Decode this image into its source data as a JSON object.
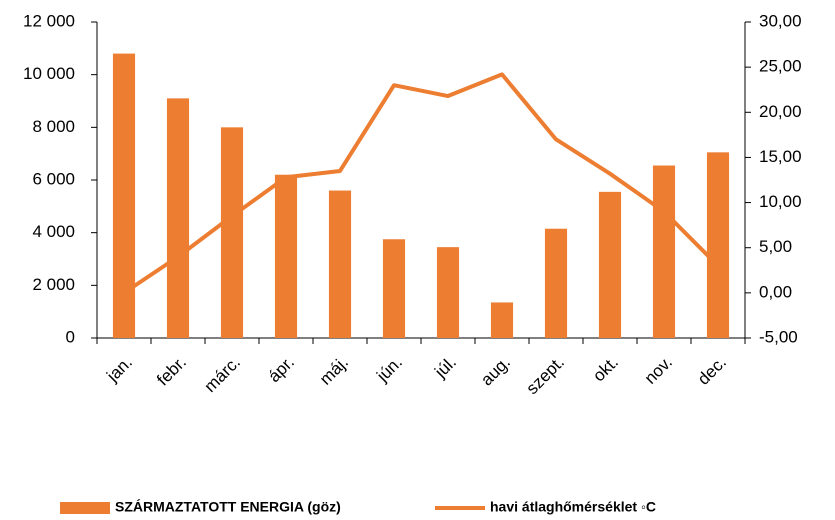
{
  "chart_data": {
    "type": "bar_line",
    "categories": [
      "jan.",
      "febr.",
      "márc.",
      "ápr.",
      "máj.",
      "jún.",
      "júl.",
      "aug.",
      "szept.",
      "okt.",
      "nov.",
      "dec."
    ],
    "series": [
      {
        "name": "SZÁRMAZTATOTT ENERGIA (göz)",
        "color": "#ed7d31",
        "type": "bar",
        "values": [
          10800,
          9100,
          8000,
          6200,
          5600,
          3750,
          3450,
          1350,
          4150,
          5550,
          6550,
          7050
        ]
      },
      {
        "name": "havi átlaghőmérséklet ◦C",
        "color": "#ed7d31",
        "type": "line",
        "axis": "y2",
        "values": [
          0,
          4,
          8.5,
          12.8,
          13.5,
          23,
          21.8,
          24.2,
          17,
          13.2,
          9,
          3
        ]
      }
    ],
    "ylim": [
      0,
      12000
    ],
    "yticks": [
      0,
      {
        "value": 2000,
        "label": "2 000"
      },
      {
        "value": 4000,
        "label": "4 000"
      },
      {
        "value": 6000,
        "label": "6 000"
      },
      {
        "value": 8000,
        "label": "8 000"
      },
      {
        "value": 10000,
        "label": "10 000"
      },
      {
        "value": 12000,
        "label": "12 000"
      }
    ],
    "y2lim": [
      -5,
      30
    ],
    "y2ticks": [
      {
        "value": -5,
        "label": "-5,00"
      },
      {
        "value": 0,
        "label": "0,00"
      },
      {
        "value": 5,
        "label": "5,00"
      },
      {
        "value": 10,
        "label": "10,00"
      },
      {
        "value": 15,
        "label": "15,00"
      },
      {
        "value": 20,
        "label": "20,00"
      },
      {
        "value": 25,
        "label": "25,00"
      },
      {
        "value": 30,
        "label": "30,00"
      }
    ],
    "legend": "bottom"
  }
}
